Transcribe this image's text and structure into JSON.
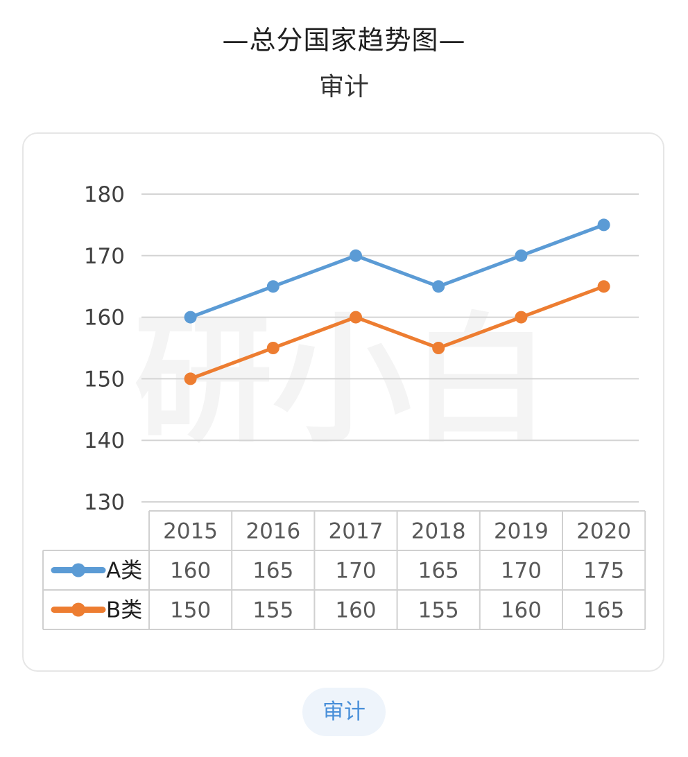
{
  "header": {
    "title": "—总分国家趋势图—",
    "subtitle": "审计"
  },
  "footer": {
    "tag_label": "审计"
  },
  "watermark": {
    "text": "研小白"
  },
  "chart_data": {
    "type": "line",
    "title": "",
    "xlabel": "",
    "ylabel": "",
    "categories": [
      "2015",
      "2016",
      "2017",
      "2018",
      "2019",
      "2020"
    ],
    "series": [
      {
        "name": "A类",
        "values": [
          160,
          165,
          170,
          165,
          170,
          175
        ],
        "color": "#5b9bd5"
      },
      {
        "name": "B类",
        "values": [
          150,
          155,
          160,
          155,
          160,
          165
        ],
        "color": "#ed7d31"
      }
    ],
    "ylim": [
      130,
      180
    ],
    "yticks": [
      130,
      140,
      150,
      160,
      170,
      180
    ],
    "grid": true,
    "data_table": true,
    "legend_position": "data-table-left"
  }
}
